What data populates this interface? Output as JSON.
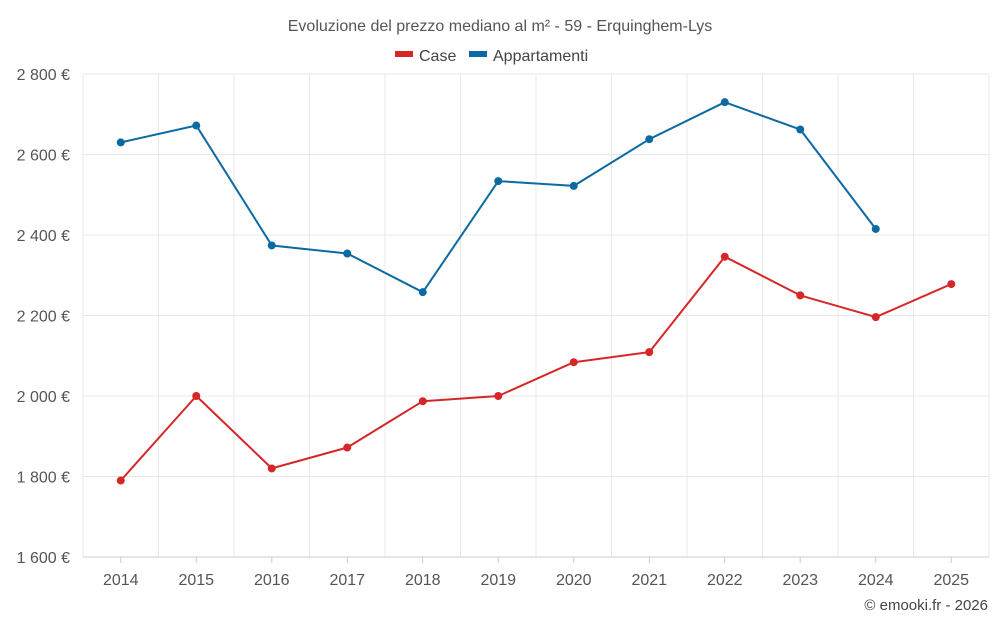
{
  "chart_data": {
    "type": "line",
    "title": "Evoluzione del prezzo mediano al m² - 59 - Erquinghem-Lys",
    "xlabel": "",
    "ylabel": "",
    "categories": [
      "2014",
      "2015",
      "2016",
      "2017",
      "2018",
      "2019",
      "2020",
      "2021",
      "2022",
      "2023",
      "2024",
      "2025"
    ],
    "ylim": [
      1600,
      2800
    ],
    "y_ticks": [
      1600,
      1800,
      2000,
      2200,
      2400,
      2600,
      2800
    ],
    "y_tick_labels": [
      "1 600 €",
      "1 800 €",
      "2 000 €",
      "2 200 €",
      "2 400 €",
      "2 600 €",
      "2 800 €"
    ],
    "grid": true,
    "legend_position": "top-center",
    "series": [
      {
        "name": "Case",
        "color": "#d62728",
        "values": [
          1790,
          2000,
          1820,
          1872,
          1987,
          2000,
          2084,
          2109,
          2346,
          2250,
          2196,
          2278
        ]
      },
      {
        "name": "Appartamenti",
        "color": "#0a6aa1",
        "values": [
          2630,
          2672,
          2374,
          2354,
          2258,
          2534,
          2522,
          2638,
          2730,
          2662,
          2415,
          null
        ]
      }
    ]
  },
  "credit": "© emooki.fr - 2026"
}
